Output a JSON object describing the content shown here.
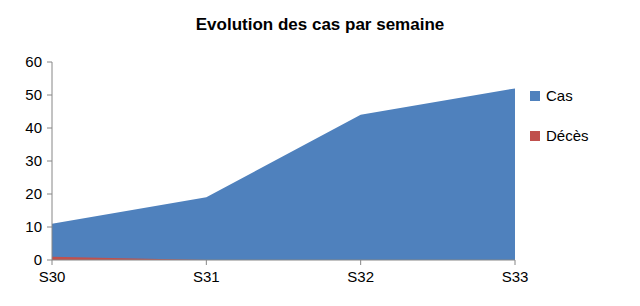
{
  "chart_data": {
    "type": "area",
    "title": "Evolution des cas par semaine",
    "categories": [
      "S30",
      "S31",
      "S32",
      "S33"
    ],
    "series": [
      {
        "name": "Cas",
        "color": "#4f81bd",
        "values": [
          11,
          19,
          44,
          52
        ]
      },
      {
        "name": "Décès",
        "color": "#c0504d",
        "values": [
          1,
          0,
          0,
          0
        ]
      }
    ],
    "ylim": [
      0,
      60
    ],
    "yticks": [
      0,
      10,
      20,
      30,
      40,
      50,
      60
    ],
    "grid": false,
    "legend": "right"
  }
}
